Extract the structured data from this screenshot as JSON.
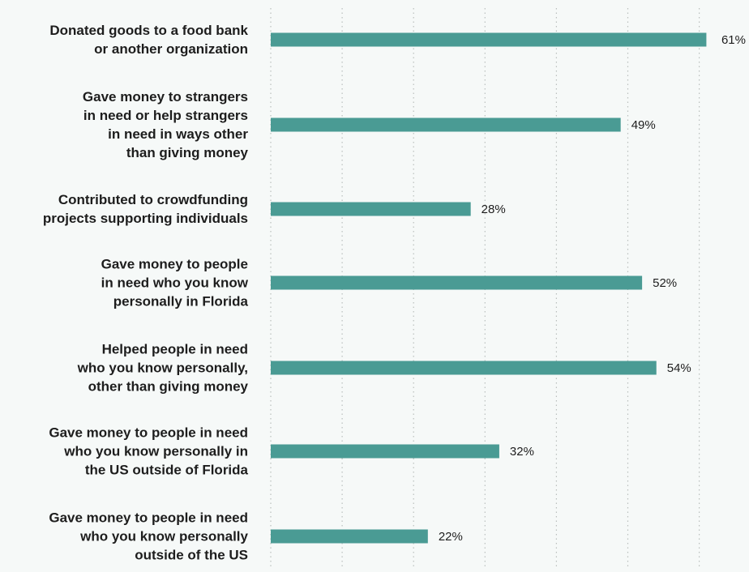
{
  "chart_data": {
    "type": "bar",
    "orientation": "horizontal",
    "categories": [
      "Donated goods to a food bank\nor another organization",
      "Gave money to strangers\nin need or help strangers\nin need in ways other\nthan giving money",
      "Contributed to crowdfunding\nprojects supporting individuals",
      "Gave money to people\nin need who you know\npersonally in Florida",
      "Helped people in need\nwho you know personally,\nother than giving money",
      "Gave money to people in need\nwho you know personally in\nthe US outside of Florida",
      "Gave money to people in need\nwho you know personally\noutside of the US"
    ],
    "values": [
      61,
      49,
      28,
      52,
      54,
      32,
      22
    ],
    "value_labels": [
      "61%",
      "49%",
      "28%",
      "52%",
      "54%",
      "32%",
      "22%"
    ],
    "xlim": [
      0,
      60
    ],
    "x_gridlines": [
      0,
      10,
      20,
      30,
      40,
      50,
      60
    ],
    "grid": true,
    "grid_style": "dotted vertical",
    "title": "",
    "xlabel": "",
    "ylabel": "",
    "bar_color": "#4a9b94",
    "grid_color": "#b9bfbd",
    "label_color": "#1d1d1d"
  }
}
